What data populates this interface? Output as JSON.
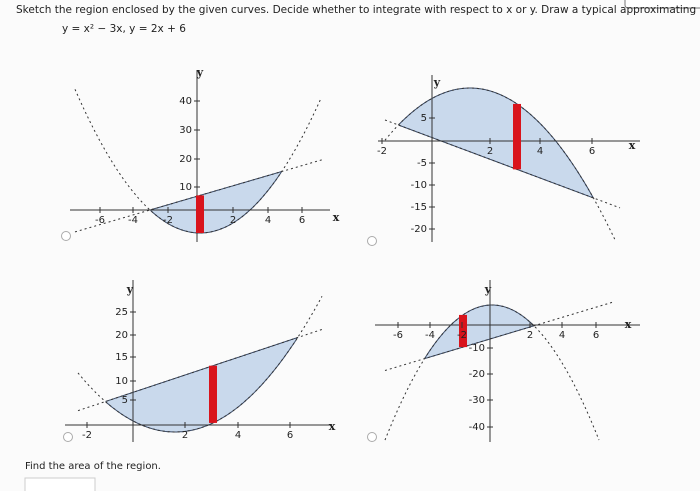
{
  "question": "Sketch the region enclosed by the given curves. Decide whether to integrate with respect to x or y. Draw a typical approximating rectangle.",
  "equation": "y = x² − 3x,  y = 2x + 6",
  "graphs": [
    {
      "y_label": "y",
      "x_label": "x",
      "x_ticks": [
        "-6",
        "-4",
        "-2",
        "2",
        "4",
        "6"
      ],
      "y_ticks": [
        "10",
        "20",
        "30",
        "40"
      ]
    },
    {
      "y_label": "y",
      "x_label": "x",
      "x_ticks": [
        "-2",
        "2",
        "4",
        "6"
      ],
      "y_ticks": [
        "5",
        "-5",
        "-10",
        "-15",
        "-20"
      ]
    },
    {
      "y_label": "y",
      "x_label": "x",
      "x_ticks": [
        "-2",
        "2",
        "4",
        "6"
      ],
      "y_ticks": [
        "25",
        "20",
        "15",
        "10",
        "5"
      ]
    },
    {
      "y_label": "y",
      "x_label": "x",
      "x_ticks": [
        "-6",
        "-4",
        "-2",
        "2",
        "4",
        "6"
      ],
      "y_ticks": [
        "-10",
        "-20",
        "-30",
        "-40"
      ]
    }
  ],
  "footer": "Find the area of the region."
}
